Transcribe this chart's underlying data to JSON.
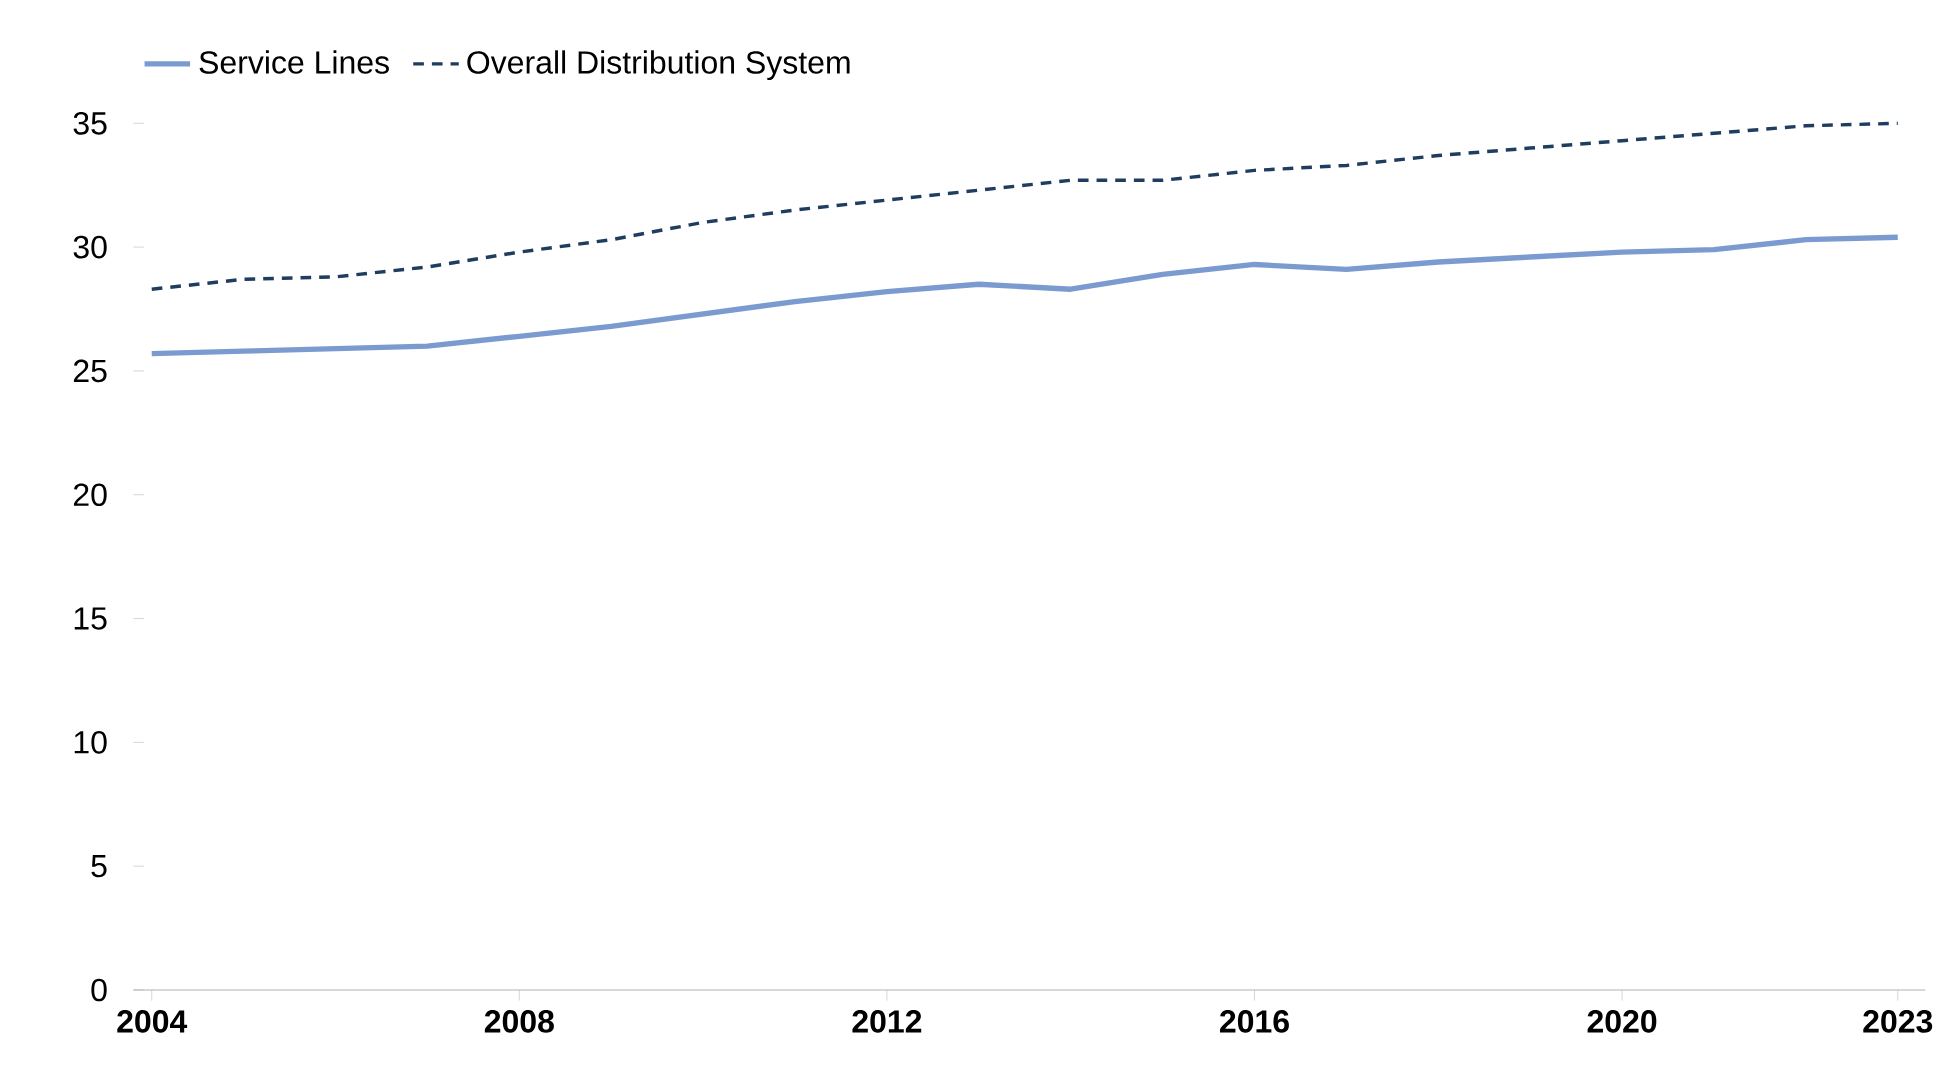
{
  "chart_data": {
    "type": "line",
    "x": [
      2004,
      2005,
      2006,
      2007,
      2008,
      2009,
      2010,
      2011,
      2012,
      2013,
      2014,
      2015,
      2016,
      2017,
      2018,
      2019,
      2020,
      2021,
      2022,
      2023
    ],
    "series": [
      {
        "name": "Service Lines",
        "color": "#7b9bd0",
        "line_style": "solid",
        "values": [
          25.7,
          25.8,
          25.9,
          26.0,
          26.4,
          26.8,
          27.3,
          27.8,
          28.2,
          28.5,
          28.3,
          28.9,
          29.3,
          29.1,
          29.4,
          29.6,
          29.8,
          29.9,
          30.3,
          30.4
        ]
      },
      {
        "name": "Overall Distribution System",
        "color": "#1f3d5e",
        "line_style": "dashed",
        "values": [
          28.3,
          28.7,
          28.8,
          29.2,
          29.8,
          30.3,
          31.0,
          31.5,
          31.9,
          32.3,
          32.7,
          32.7,
          33.1,
          33.3,
          33.7,
          34.0,
          34.3,
          34.6,
          34.9,
          35.0
        ]
      }
    ],
    "xlim": [
      2003.8,
      2023.3
    ],
    "xticks": [
      2004,
      2008,
      2012,
      2016,
      2020,
      2023
    ],
    "ylim": [
      0,
      35
    ],
    "yticks": [
      0,
      5,
      10,
      15,
      20,
      25,
      30,
      35
    ],
    "grid": false,
    "legend": "top left",
    "marker": "none"
  }
}
